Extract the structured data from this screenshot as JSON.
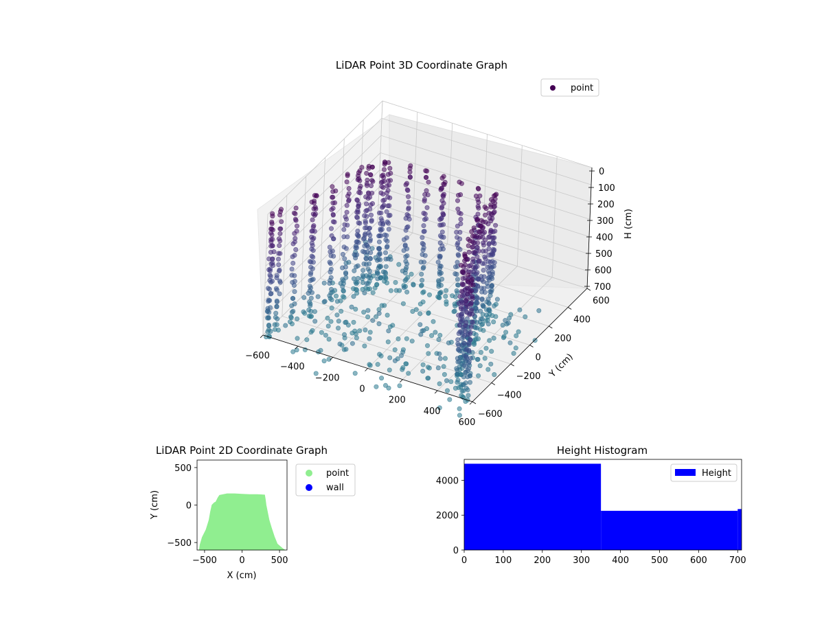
{
  "chart_data": [
    {
      "type": "scatter",
      "subtype": "scatter3d",
      "title": "LiDAR Point 3D Coordinate Graph",
      "xlabel": "",
      "ylabel": "Y (cm)",
      "zlabel": "H (cm)",
      "xlim": [
        -600,
        600
      ],
      "ylim": [
        -600,
        600
      ],
      "zlim": [
        0,
        700
      ],
      "z_inverted": true,
      "x_ticks": [
        "−600",
        "−400",
        "−200",
        "0",
        "200",
        "400",
        "600"
      ],
      "y_ticks": [
        "−600",
        "−400",
        "−200",
        "0",
        "200",
        "400",
        "600"
      ],
      "z_ticks": [
        "0",
        "100",
        "200",
        "300",
        "400",
        "500",
        "600",
        "700"
      ],
      "legend": {
        "position": "top-right",
        "entries": [
          {
            "name": "point",
            "color": "#440154"
          }
        ]
      },
      "grid": true,
      "colormap": "viridis",
      "description_of_data": "Point cloud of walls around a room: points lie on a closed loop of radius ~500 cm at heights 0–700 cm"
    },
    {
      "type": "scatter",
      "title": "LiDAR Point 2D Coordinate Graph",
      "xlabel": "X (cm)",
      "ylabel": "Y (cm)",
      "xlim": [
        -600,
        600
      ],
      "ylim": [
        -600,
        600
      ],
      "x_ticks": [
        "−500",
        "0",
        "500"
      ],
      "y_ticks": [
        "−500",
        "0",
        "500"
      ],
      "series": [
        {
          "name": "point",
          "color": "#90ee90",
          "outline": [
            [
              -570,
              -600
            ],
            [
              -560,
              -530
            ],
            [
              -530,
              -430
            ],
            [
              -480,
              -330
            ],
            [
              -440,
              -200
            ],
            [
              -420,
              -90
            ],
            [
              -400,
              0
            ],
            [
              -370,
              30
            ],
            [
              -350,
              40
            ],
            [
              -320,
              100
            ],
            [
              -300,
              130
            ],
            [
              -200,
              150
            ],
            [
              -100,
              150
            ],
            [
              0,
              145
            ],
            [
              100,
              140
            ],
            [
              200,
              140
            ],
            [
              300,
              135
            ],
            [
              310,
              80
            ],
            [
              320,
              0
            ],
            [
              340,
              -100
            ],
            [
              360,
              -200
            ],
            [
              390,
              -300
            ],
            [
              430,
              -420
            ],
            [
              470,
              -520
            ],
            [
              540,
              -580
            ],
            [
              570,
              -600
            ]
          ]
        },
        {
          "name": "wall",
          "color": "#0000ff"
        }
      ],
      "legend": {
        "position": "outside-right",
        "entries": [
          "point",
          "wall"
        ]
      }
    },
    {
      "type": "bar",
      "subtype": "histogram",
      "title": "Height Histogram",
      "xlabel": "",
      "ylabel": "",
      "xlim": [
        0,
        710
      ],
      "ylim": [
        0,
        5200
      ],
      "x_ticks": [
        "0",
        "100",
        "200",
        "300",
        "400",
        "500",
        "600",
        "700"
      ],
      "y_ticks": [
        "0",
        "2000",
        "4000"
      ],
      "bins": [
        {
          "from": 0,
          "to": 350,
          "count": 4950
        },
        {
          "from": 350,
          "to": 700,
          "count": 2250
        },
        {
          "from": 700,
          "to": 710,
          "count": 2350
        }
      ],
      "color": "#0000ff",
      "legend": {
        "position": "top-right",
        "entries": [
          "Height"
        ]
      }
    }
  ]
}
